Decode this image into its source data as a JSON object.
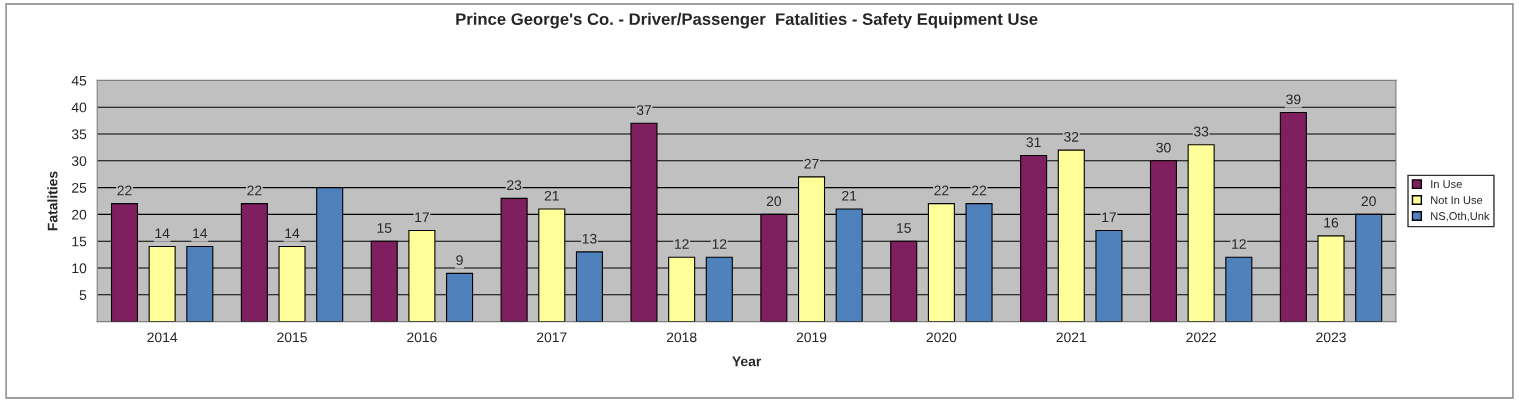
{
  "chart_data": {
    "type": "bar",
    "title": "Prince George's Co. - Driver/Passenger  Fatalities - Safety Equipment Use",
    "xlabel": "Year",
    "ylabel": "Fatalities",
    "categories": [
      "2014",
      "2015",
      "2016",
      "2017",
      "2018",
      "2019",
      "2020",
      "2021",
      "2022",
      "2023"
    ],
    "series": [
      {
        "name": "In Use",
        "color": "#801f5f",
        "values": [
          22,
          22,
          15,
          23,
          37,
          20,
          15,
          31,
          30,
          39
        ],
        "value_labels": [
          "22",
          "22",
          "15",
          "23",
          "37",
          "20",
          "15",
          "31",
          "30",
          "39"
        ]
      },
      {
        "name": "Not In Use",
        "color": "#ffff99",
        "values": [
          14,
          14,
          17,
          21,
          12,
          27,
          22,
          32,
          33,
          16
        ],
        "value_labels": [
          "14",
          "14",
          "17",
          "21",
          "12",
          "27",
          "22",
          "32",
          "33",
          "16"
        ]
      },
      {
        "name": "NS,Oth,Unk",
        "color": "#4f81bd",
        "values": [
          14,
          25,
          9,
          13,
          12,
          21,
          22,
          17,
          12,
          20
        ],
        "value_labels": [
          "14",
          null,
          "9",
          "13",
          "12",
          "21",
          "22",
          "17",
          "12",
          "20"
        ]
      }
    ],
    "ylim": [
      0,
      45
    ],
    "yticks": [
      5,
      10,
      15,
      20,
      25,
      30,
      35,
      40,
      45
    ],
    "grid": "y",
    "legend": "right"
  }
}
